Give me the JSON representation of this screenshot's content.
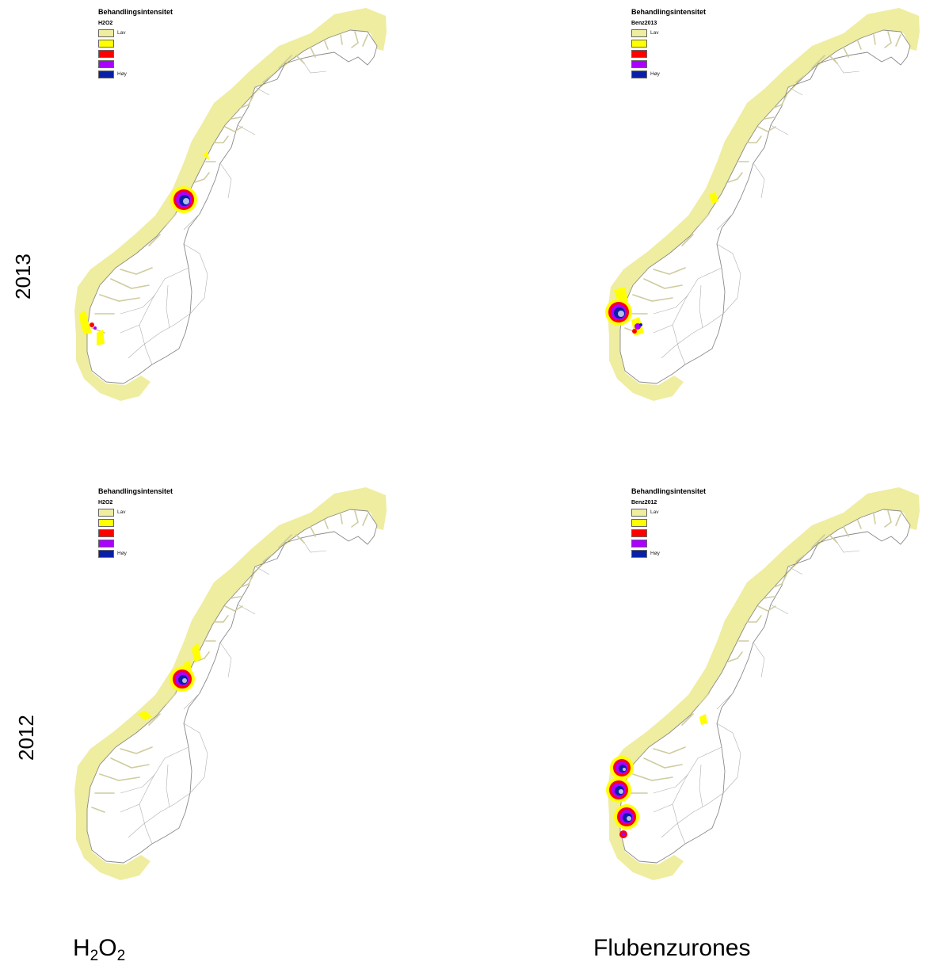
{
  "row_labels": [
    "2013",
    "2012"
  ],
  "column_labels": {
    "left_main": "H",
    "left_sub1": "2",
    "left_mid": "O",
    "left_sub2": "2",
    "right": "Flubenzurones"
  },
  "legend": {
    "title": "Behandlingsintensitet",
    "classes": [
      {
        "label": "Lav",
        "color": "#efed9f"
      },
      {
        "label": "",
        "color": "#ffff00"
      },
      {
        "label": "",
        "color": "#ff0000"
      },
      {
        "label": "",
        "color": "#aa00ff"
      },
      {
        "label": "Høy",
        "color": "#0a1fa8"
      }
    ]
  },
  "panels": [
    {
      "id": "h2o2-2013",
      "field": "H2O2"
    },
    {
      "id": "benz-2013",
      "field": "Benz2013"
    },
    {
      "id": "h2o2-2012",
      "field": "H2O2"
    },
    {
      "id": "benz-2012",
      "field": "Benz2012"
    }
  ],
  "colors": {
    "sea_buffer": "#efed9f",
    "land_fill": "#ffffff",
    "land_stroke": "#8a8a8a",
    "border_stroke": "#b0b0b0"
  }
}
